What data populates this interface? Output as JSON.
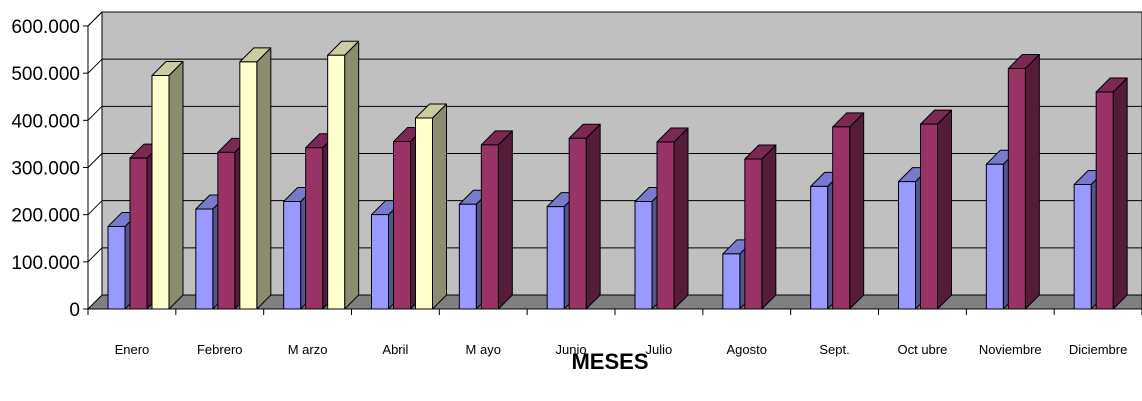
{
  "chart_data": {
    "type": "bar",
    "title": "",
    "xlabel": "MESES",
    "ylabel": "",
    "ylim": [
      0,
      600000
    ],
    "yticks": [
      0,
      100000,
      200000,
      300000,
      400000,
      500000,
      600000
    ],
    "ytick_labels": [
      "0",
      "100.000",
      "200.000",
      "300.000",
      "400.000",
      "500.000",
      "600.000"
    ],
    "categories": [
      "Enero",
      "Febrero",
      "M arzo",
      "Abril",
      "M ayo",
      "Junio",
      "Julio",
      "Agosto",
      "Sept.",
      "Oct ubre",
      "Noviembre",
      "Diciembre"
    ],
    "grid": true,
    "legend": "none",
    "series": [
      {
        "color": "#9999ff",
        "values": [
          175000,
          212000,
          228000,
          200000,
          222000,
          217000,
          228000,
          117000,
          260000,
          270000,
          307000,
          264000
        ]
      },
      {
        "color": "#993366",
        "values": [
          320000,
          332000,
          342000,
          355000,
          348000,
          362000,
          354000,
          318000,
          386000,
          392000,
          510000,
          460000
        ]
      },
      {
        "color": "#ffffcc",
        "values": [
          495000,
          524000,
          538000,
          405000,
          null,
          null,
          null,
          null,
          null,
          null,
          null,
          null
        ]
      }
    ],
    "colors": {
      "wall": "#c0c0c0",
      "floor": "#808080",
      "grid": "#000000"
    }
  }
}
